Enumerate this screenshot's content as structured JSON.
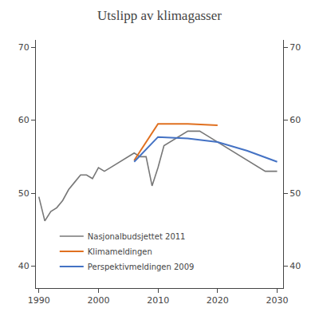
{
  "chart_data": {
    "type": "line",
    "title": "Utslipp av klimagasser",
    "xlim": [
      1989.5,
      2031
    ],
    "xticks": [
      1990,
      2000,
      2010,
      2020,
      2030
    ],
    "ylim": [
      37,
      71
    ],
    "yticks": [
      40,
      50,
      60,
      70
    ],
    "y2lim": [
      37,
      71
    ],
    "y2ticks": [
      40,
      50,
      60,
      70
    ],
    "grid": false,
    "legend": "lower left",
    "series": [
      {
        "name": "Nasjonalbudsjettet 2011",
        "color": "#777777",
        "x": [
          1990,
          1991,
          1992,
          1993,
          1994,
          1995,
          1996,
          1997,
          1998,
          1999,
          2000,
          2001,
          2002,
          2003,
          2004,
          2005,
          2006,
          2007,
          2008,
          2009,
          2010,
          2011,
          2012,
          2013,
          2014,
          2015,
          2016,
          2017,
          2018,
          2019,
          2020,
          2021,
          2022,
          2023,
          2024,
          2025,
          2026,
          2027,
          2028,
          2029,
          2030
        ],
        "values": [
          49.5,
          46.2,
          47.5,
          48.0,
          49.0,
          50.5,
          51.5,
          52.5,
          52.5,
          52.0,
          53.5,
          53.0,
          53.5,
          54.0,
          54.5,
          55.0,
          55.5,
          55.0,
          55.0,
          51.0,
          53.5,
          56.5,
          57.0,
          57.5,
          58.0,
          58.5,
          58.5,
          58.5,
          58.0,
          57.5,
          57.0,
          56.5,
          56.0,
          55.5,
          55.0,
          54.5,
          54.0,
          53.5,
          53.0,
          53.0,
          53.0
        ]
      },
      {
        "name": "Klimameldingen",
        "color": "#E07020",
        "x": [
          2006,
          2010,
          2015,
          2020
        ],
        "values": [
          54.5,
          59.5,
          59.5,
          59.3
        ]
      },
      {
        "name": "Perspektivmeldingen 2009",
        "color": "#4472C4",
        "x": [
          2006,
          2010,
          2015,
          2020,
          2025,
          2030
        ],
        "values": [
          54.3,
          57.7,
          57.5,
          57.0,
          55.8,
          54.3
        ]
      }
    ]
  }
}
